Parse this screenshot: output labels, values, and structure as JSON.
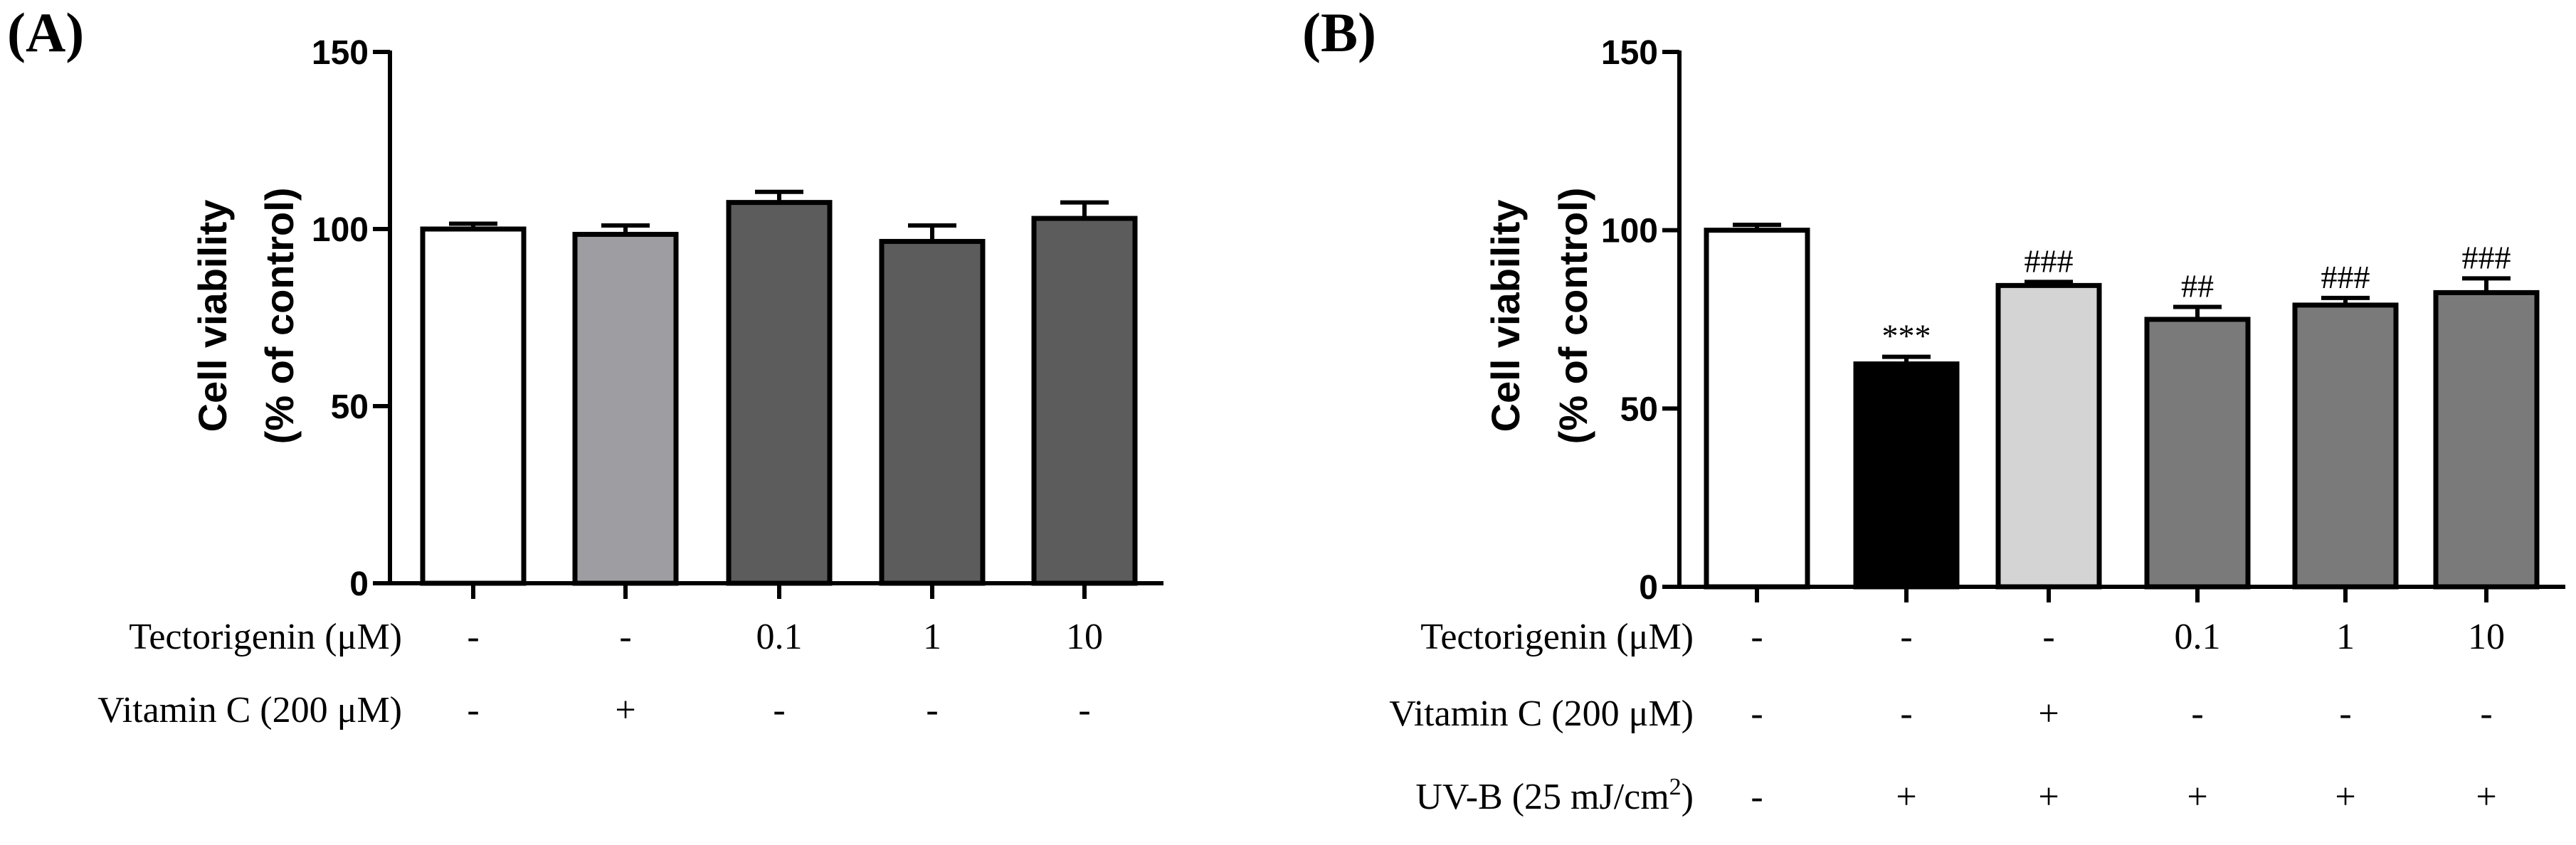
{
  "colors": {
    "white": "#ffffff",
    "light_gray": "#9e9ea2",
    "dark_gray": "#5c5c5c",
    "black": "#000000",
    "pale_gray": "#d4d4d4",
    "mid_gray": "#7a7a7a"
  },
  "chart_data": [
    {
      "type": "bar",
      "panel_label": "(A)",
      "ylabel_line1": "Cell viability",
      "ylabel_line2": "(% of control)",
      "ylim": [
        0,
        150
      ],
      "yticks": [
        "0",
        "50",
        "100",
        "150"
      ],
      "values": [
        100,
        98.5,
        107.5,
        96.5,
        103
      ],
      "errors": [
        1.5,
        2.5,
        3,
        4.5,
        4.5
      ],
      "bar_colors": [
        "white",
        "light_gray",
        "dark_gray",
        "dark_gray",
        "dark_gray"
      ],
      "annotations": [
        "",
        "",
        "",
        "",
        ""
      ],
      "conditions": [
        {
          "label": "Tectorigenin (μM)",
          "values": [
            "-",
            "-",
            "0.1",
            "1",
            "10"
          ]
        },
        {
          "label": "Vitamin  C (200  μM)",
          "values": [
            "-",
            "+",
            "-",
            "-",
            "-"
          ]
        }
      ]
    },
    {
      "type": "bar",
      "panel_label": "(B)",
      "ylabel_line1": "Cell viability",
      "ylabel_line2": "(% of control)",
      "ylim": [
        0,
        150
      ],
      "yticks": [
        "0",
        "50",
        "100",
        "150"
      ],
      "values": [
        100,
        62.5,
        84.5,
        75,
        79,
        82.5
      ],
      "errors": [
        1.5,
        2,
        1,
        3.5,
        2,
        4
      ],
      "bar_colors": [
        "white",
        "black",
        "pale_gray",
        "mid_gray",
        "mid_gray",
        "mid_gray"
      ],
      "annotations": [
        "",
        "***",
        "###",
        "##",
        "###",
        "###"
      ],
      "conditions": [
        {
          "label": "Tectorigenin (μM)",
          "values": [
            "-",
            "-",
            "-",
            "0.1",
            "1",
            "10"
          ]
        },
        {
          "label": "Vitamin  C (200  μM)",
          "values": [
            "-",
            "-",
            "+",
            "-",
            "-",
            "-"
          ]
        },
        {
          "label": "UV-B (25 mJ/cm",
          "label_sup": "2",
          "label_tail": ")",
          "values": [
            "-",
            "+",
            "+",
            "+",
            "+",
            "+"
          ]
        }
      ]
    }
  ]
}
